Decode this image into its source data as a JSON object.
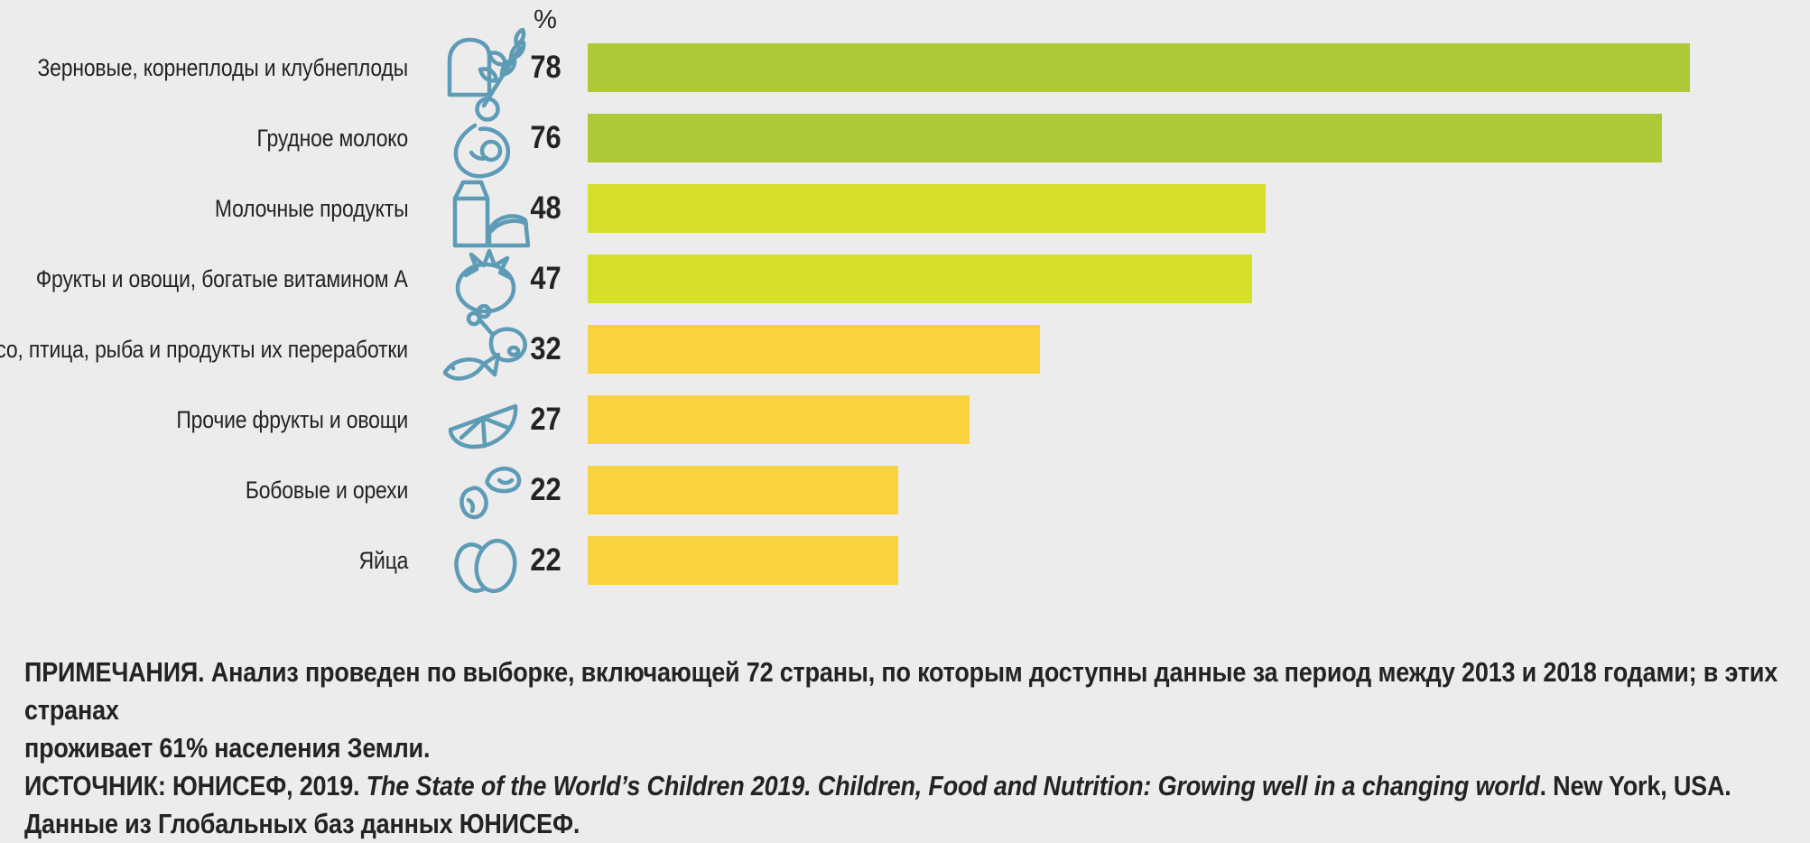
{
  "colors": {
    "background": "#ececec",
    "bar_green": "#adc937",
    "bar_yellow_green": "#d6df2a",
    "bar_yellow": "#f9d23f",
    "icon_stroke": "#5d9bb6",
    "text": "#232323"
  },
  "chart_data": {
    "type": "bar",
    "orientation": "horizontal",
    "unit_label": "%",
    "title": "",
    "xlabel": "",
    "ylabel": "",
    "xlim": [
      0,
      78
    ],
    "grid": false,
    "legend": false,
    "categories": [
      "Зерновые, корнеплоды и клубнеплоды",
      "Грудное молоко",
      "Молочные продукты",
      "Фрукты и овощи, богатые витамином А",
      "Мясо, птица, рыба и продукты их переработки",
      "Прочие фрукты и овощи",
      "Бобовые и орехи",
      "Яйца"
    ],
    "values": [
      78,
      76,
      48,
      47,
      32,
      27,
      22,
      22
    ],
    "bar_colors": [
      "#adc937",
      "#adc937",
      "#d6df2a",
      "#d6df2a",
      "#f9d23f",
      "#f9d23f",
      "#f9d23f",
      "#f9d23f"
    ],
    "icons": [
      "bread-and-wheat",
      "breastfeeding",
      "milk-and-cheese",
      "tomato",
      "meat-and-fish",
      "citrus-slice",
      "beans",
      "eggs"
    ]
  },
  "notes": {
    "note_line1": "ПРИМЕЧАНИЯ. Анализ проведен по выборке, включающей 72 страны, по которым доступны данные за период между 2013 и 2018 годами; в этих странах",
    "note_line2": "проживает 61% населения Земли.",
    "source_prefix": "ИСТОЧНИК: ЮНИСЕФ, 2019. ",
    "source_italic": "The State of the World’s Children 2019. Children, Food and Nutrition: Growing well in a changing world",
    "source_suffix": ". New York, USA. Данные из Глобальных баз данных ЮНИСЕФ."
  }
}
